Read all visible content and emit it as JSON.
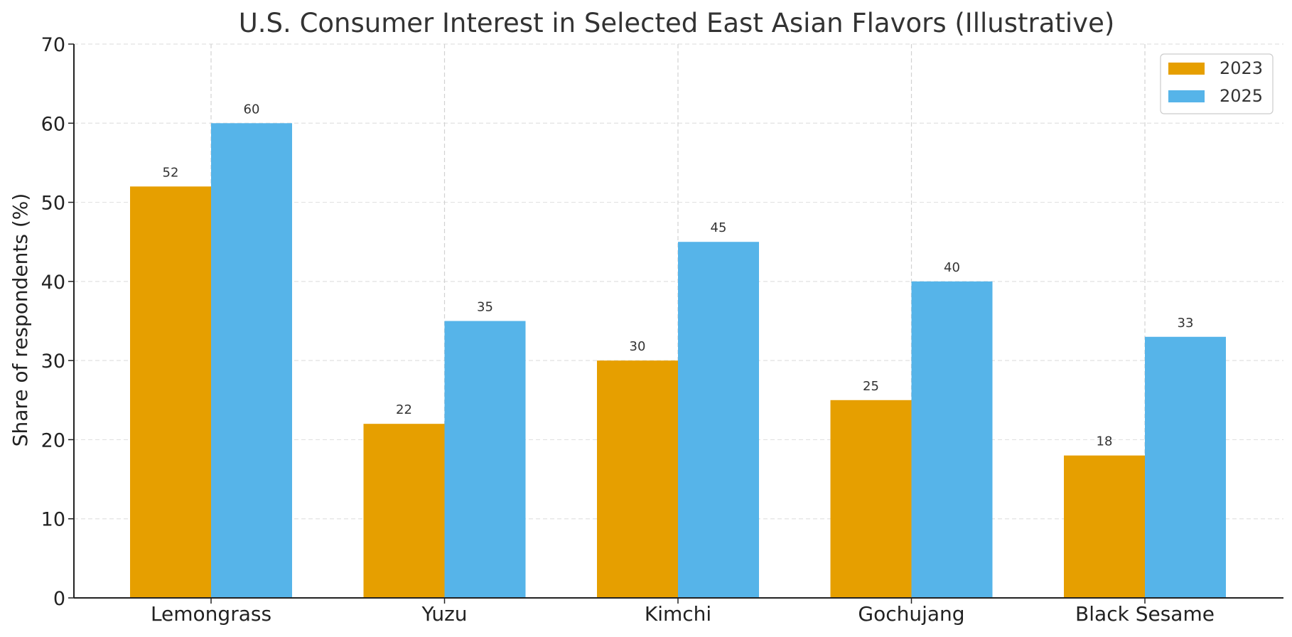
{
  "chart_data": {
    "type": "bar",
    "title": "U.S. Consumer Interest in Selected East Asian Flavors (Illustrative)",
    "xlabel": "",
    "ylabel": "Share of respondents (%)",
    "categories": [
      "Lemongrass",
      "Yuzu",
      "Kimchi",
      "Gochujang",
      "Black Sesame"
    ],
    "series": [
      {
        "name": "2023",
        "values": [
          52,
          22,
          30,
          25,
          18
        ],
        "color": "#E69F00"
      },
      {
        "name": "2025",
        "values": [
          60,
          35,
          45,
          40,
          33
        ],
        "color": "#56B4E9"
      }
    ],
    "ylim": [
      0,
      70
    ],
    "yticks": [
      0,
      10,
      20,
      30,
      40,
      50,
      60,
      70
    ],
    "grid": true,
    "legend_position": "top-right",
    "data_labels": true
  }
}
